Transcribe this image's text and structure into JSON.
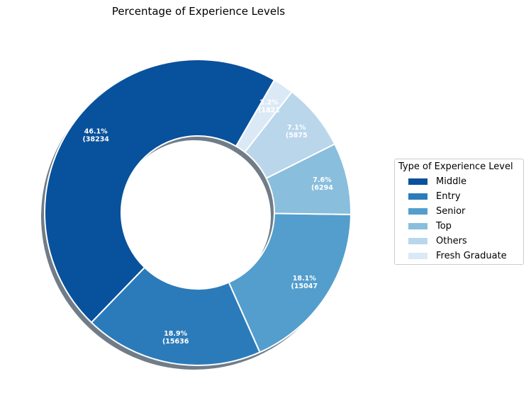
{
  "chart_data": {
    "type": "pie",
    "title": "Percentage of Experience Levels",
    "legend_title": "Type of Experience Level",
    "legend_position": "center-right",
    "slices": [
      {
        "label": "Middle",
        "value": 38234,
        "percent": "46.1%",
        "color": "#08519c"
      },
      {
        "label": "Entry",
        "value": 15636,
        "percent": "18.9%",
        "color": "#2b7bba"
      },
      {
        "label": "Senior",
        "value": 15047,
        "percent": "18.1%",
        "color": "#539ecd"
      },
      {
        "label": "Top",
        "value": 6294,
        "percent": "7.6%",
        "color": "#89bedc"
      },
      {
        "label": "Others",
        "value": 5875,
        "percent": "7.1%",
        "color": "#bad6eb"
      },
      {
        "label": "Fresh Graduate",
        "value": 1821,
        "percent": "2.2%",
        "color": "#dbe9f6"
      }
    ]
  }
}
